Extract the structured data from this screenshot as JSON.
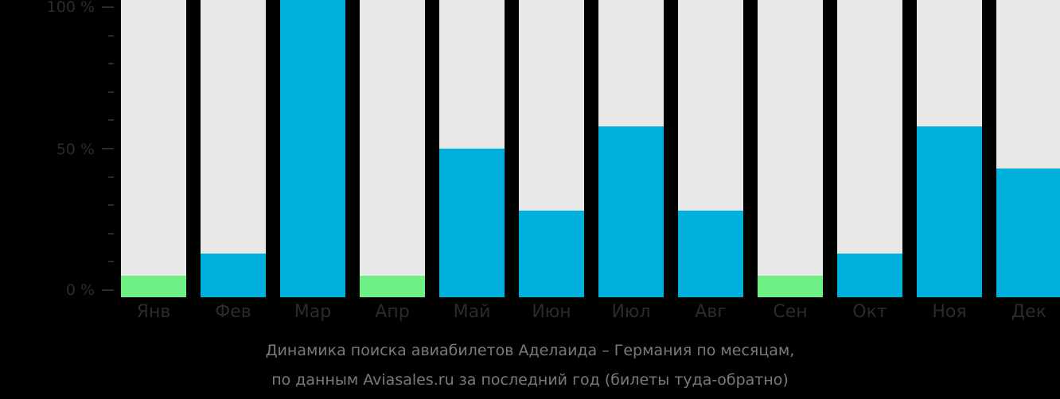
{
  "chart_data": {
    "type": "bar",
    "title": "Динамика поиска авиабилетов Аделаида – Германия по месяцам, по данным Aviasales.ru за последний год (билеты туда-обратно)",
    "xlabel": "",
    "ylabel": "",
    "ylim": [
      0,
      100
    ],
    "yticks": [
      "0 %",
      "50 %",
      "100 %"
    ],
    "categories": [
      "Янв",
      "Фев",
      "Мар",
      "Апр",
      "Май",
      "Июн",
      "Июл",
      "Авг",
      "Сен",
      "Окт",
      "Ноя",
      "Дек"
    ],
    "values": [
      5,
      13,
      100,
      5,
      50,
      28,
      58,
      28,
      5,
      13,
      58,
      43
    ],
    "bar_colors": [
      "#6ef087",
      "#00b0dc",
      "#00b0dc",
      "#6ef087",
      "#00b0dc",
      "#00b0dc",
      "#00b0dc",
      "#00b0dc",
      "#6ef087",
      "#00b0dc",
      "#00b0dc",
      "#00b0dc"
    ],
    "background_bar_color": "#e8e8e8",
    "grid": false,
    "legend": null
  },
  "axis": {
    "y_labels": [
      "100 %",
      "50 %",
      "0 %"
    ]
  },
  "caption": {
    "line1": "Динамика поиска авиабилетов Аделаида – Германия по месяцам,",
    "line2": "по данным Aviasales.ru за последний год (билеты туда-обратно)"
  }
}
